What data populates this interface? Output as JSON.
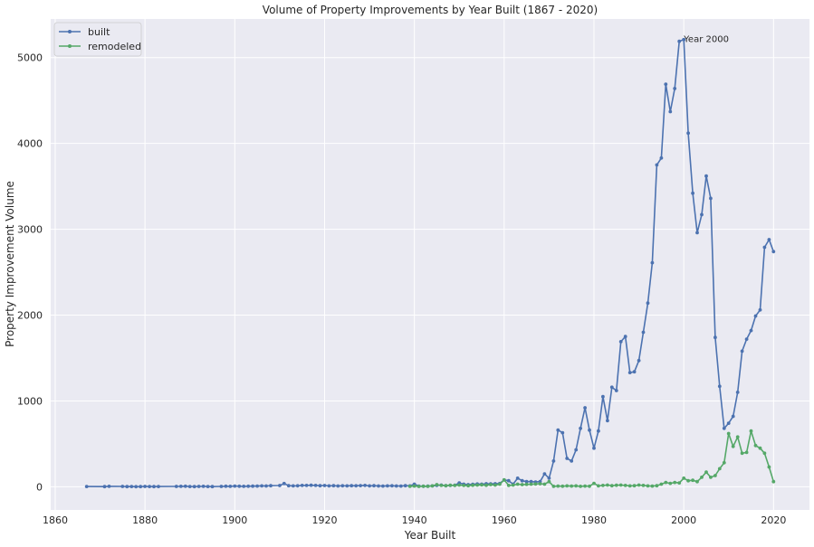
{
  "chart_data": {
    "type": "line",
    "title": "Volume of Property Improvements by Year Built (1867 - 2020)",
    "xlabel": "Year Built",
    "ylabel": "Property Improvement Volume",
    "xlim": [
      1859,
      2028
    ],
    "ylim": [
      -270,
      5450
    ],
    "x_ticks": [
      1860,
      1880,
      1900,
      1920,
      1940,
      1960,
      1980,
      2000,
      2020
    ],
    "y_ticks": [
      0,
      1000,
      2000,
      3000,
      4000,
      5000
    ],
    "grid": true,
    "legend_position": "top-left",
    "colors": {
      "background": "#eaeaf2",
      "grid": "#ffffff",
      "built": "#4c72b0",
      "remodeled": "#55a868"
    },
    "annotations": [
      {
        "text": "Year 2000",
        "x": 2000,
        "y": 5200
      }
    ],
    "series": [
      {
        "name": "built",
        "x": [
          1867,
          1871,
          1872,
          1875,
          1876,
          1877,
          1878,
          1879,
          1880,
          1881,
          1882,
          1883,
          1887,
          1888,
          1889,
          1890,
          1891,
          1892,
          1893,
          1894,
          1895,
          1897,
          1898,
          1899,
          1900,
          1901,
          1902,
          1903,
          1904,
          1905,
          1906,
          1907,
          1908,
          1910,
          1911,
          1912,
          1913,
          1914,
          1915,
          1916,
          1917,
          1918,
          1919,
          1920,
          1921,
          1922,
          1923,
          1924,
          1925,
          1926,
          1927,
          1928,
          1929,
          1930,
          1931,
          1932,
          1933,
          1934,
          1935,
          1936,
          1937,
          1938,
          1939,
          1940,
          1941,
          1942,
          1943,
          1944,
          1945,
          1946,
          1947,
          1948,
          1949,
          1950,
          1951,
          1952,
          1953,
          1954,
          1955,
          1956,
          1957,
          1958,
          1959,
          1960,
          1961,
          1962,
          1963,
          1964,
          1965,
          1966,
          1967,
          1968,
          1969,
          1970,
          1971,
          1972,
          1973,
          1974,
          1975,
          1976,
          1977,
          1978,
          1979,
          1980,
          1981,
          1982,
          1983,
          1984,
          1985,
          1986,
          1987,
          1988,
          1989,
          1990,
          1991,
          1992,
          1993,
          1994,
          1995,
          1996,
          1997,
          1998,
          1999,
          2000,
          2001,
          2002,
          2003,
          2004,
          2005,
          2006,
          2007,
          2008,
          2009,
          2010,
          2011,
          2012,
          2013,
          2014,
          2015,
          2016,
          2017,
          2018,
          2019,
          2020
        ],
        "values": [
          3,
          2,
          5,
          4,
          2,
          3,
          1,
          2,
          4,
          3,
          2,
          3,
          4,
          5,
          6,
          3,
          2,
          4,
          5,
          3,
          2,
          4,
          6,
          5,
          8,
          6,
          5,
          6,
          7,
          8,
          10,
          9,
          12,
          14,
          38,
          12,
          10,
          11,
          15,
          16,
          18,
          15,
          12,
          14,
          10,
          12,
          9,
          11,
          10,
          12,
          11,
          13,
          15,
          10,
          12,
          9,
          8,
          10,
          11,
          9,
          8,
          12,
          10,
          30,
          8,
          6,
          7,
          10,
          15,
          20,
          12,
          15,
          18,
          45,
          30,
          25,
          28,
          32,
          30,
          35,
          33,
          35,
          38,
          80,
          70,
          30,
          100,
          70,
          60,
          60,
          55,
          60,
          150,
          100,
          300,
          660,
          630,
          330,
          300,
          430,
          680,
          920,
          660,
          450,
          650,
          1050,
          770,
          1160,
          1120,
          1690,
          1750,
          1330,
          1340,
          1470,
          1800,
          2140,
          2610,
          3750,
          3830,
          4690,
          4370,
          4640,
          5190,
          5210,
          4120,
          3420,
          2960,
          3170,
          3620,
          3360,
          1740,
          1170,
          680,
          740,
          820,
          1100,
          1580,
          1720,
          1820,
          1990,
          2060,
          2790,
          2880,
          2740
        ]
      },
      {
        "name": "remodeled",
        "x": [
          1939,
          1940,
          1941,
          1942,
          1943,
          1944,
          1945,
          1946,
          1947,
          1948,
          1949,
          1950,
          1951,
          1952,
          1953,
          1954,
          1955,
          1956,
          1957,
          1958,
          1959,
          1960,
          1961,
          1962,
          1963,
          1964,
          1965,
          1966,
          1967,
          1968,
          1969,
          1970,
          1971,
          1972,
          1973,
          1974,
          1975,
          1976,
          1977,
          1978,
          1979,
          1980,
          1981,
          1982,
          1983,
          1984,
          1985,
          1986,
          1987,
          1988,
          1989,
          1990,
          1991,
          1992,
          1993,
          1994,
          1995,
          1996,
          1997,
          1998,
          1999,
          2000,
          2001,
          2002,
          2003,
          2004,
          2005,
          2006,
          2007,
          2008,
          2009,
          2010,
          2011,
          2012,
          2013,
          2014,
          2015,
          2016,
          2017,
          2018,
          2019,
          2020
        ],
        "values": [
          5,
          8,
          4,
          6,
          5,
          10,
          25,
          15,
          12,
          18,
          15,
          20,
          15,
          12,
          18,
          20,
          22,
          18,
          25,
          20,
          30,
          80,
          15,
          20,
          30,
          25,
          28,
          30,
          32,
          35,
          30,
          60,
          5,
          8,
          6,
          10,
          8,
          10,
          5,
          8,
          6,
          40,
          10,
          15,
          20,
          12,
          18,
          20,
          15,
          10,
          12,
          20,
          15,
          10,
          8,
          12,
          30,
          50,
          40,
          50,
          45,
          100,
          70,
          75,
          60,
          110,
          170,
          110,
          130,
          210,
          280,
          620,
          470,
          580,
          390,
          400,
          650,
          480,
          450,
          390,
          230,
          60
        ]
      }
    ]
  }
}
